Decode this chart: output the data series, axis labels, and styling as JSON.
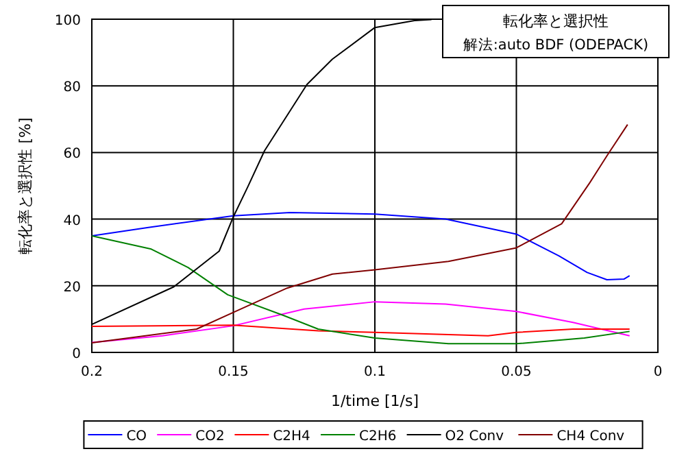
{
  "chart_data": {
    "type": "line",
    "title": "転化率と選択性",
    "subtitle": "解法:auto BDF (ODEPACK)",
    "xlabel": "1/time [1/s]",
    "ylabel": "転化率と選択性 [%]",
    "xlim": [
      0.2,
      0
    ],
    "xticks": [
      0.2,
      0.15,
      0.1,
      0.05,
      0
    ],
    "ylim": [
      0,
      100
    ],
    "yticks": [
      0,
      20,
      40,
      60,
      80,
      100
    ],
    "grid": true,
    "legend": "bottom",
    "marker": "none",
    "line_style": "solid",
    "series": [
      {
        "name": "CO",
        "color": "#0000ff",
        "x": [
          0.2,
          0.18,
          0.15,
          0.13,
          0.1,
          0.075,
          0.05,
          0.035,
          0.025,
          0.018,
          0.012,
          0.01
        ],
        "values": [
          35,
          37.5,
          41,
          42,
          41.5,
          40,
          35.5,
          29,
          24,
          21.8,
          22,
          23
        ]
      },
      {
        "name": "CO2",
        "color": "#ff00ff",
        "x": [
          0.2,
          0.175,
          0.15,
          0.125,
          0.1,
          0.075,
          0.05,
          0.03,
          0.01
        ],
        "values": [
          3,
          5,
          8,
          13,
          15.2,
          14.5,
          12.3,
          9,
          5
        ]
      },
      {
        "name": "C2H4",
        "color": "#ff0000",
        "x": [
          0.2,
          0.15,
          0.12,
          0.1,
          0.06,
          0.05,
          0.03,
          0.01
        ],
        "values": [
          7.8,
          8.2,
          6.5,
          6,
          5,
          6,
          7,
          7
        ]
      },
      {
        "name": "C2H6",
        "color": "#008000",
        "x": [
          0.2,
          0.179,
          0.166,
          0.152,
          0.132,
          0.12,
          0.1,
          0.074,
          0.05,
          0.026,
          0.01
        ],
        "values": [
          35,
          31,
          25.5,
          17.3,
          11,
          7,
          4.3,
          2.6,
          2.6,
          4.3,
          6.3
        ]
      },
      {
        "name": "O2 Conv",
        "color": "#000000",
        "x": [
          0.2,
          0.171,
          0.155,
          0.15,
          0.145,
          0.139,
          0.124,
          0.115,
          0.1,
          0.086,
          0.08
        ],
        "values": [
          8.4,
          19.7,
          30.4,
          40.7,
          49.5,
          60.5,
          80.4,
          88,
          97.5,
          99.6,
          99.9
        ]
      },
      {
        "name": "CH4 Conv",
        "color": "#800000",
        "x": [
          0.2,
          0.163,
          0.15,
          0.131,
          0.115,
          0.1,
          0.074,
          0.05,
          0.034,
          0.024,
          0.018,
          0.0107
        ],
        "values": [
          2.9,
          7,
          12,
          19.3,
          23.5,
          24.8,
          27.3,
          31.4,
          38.6,
          51,
          59,
          68.4
        ]
      }
    ]
  }
}
